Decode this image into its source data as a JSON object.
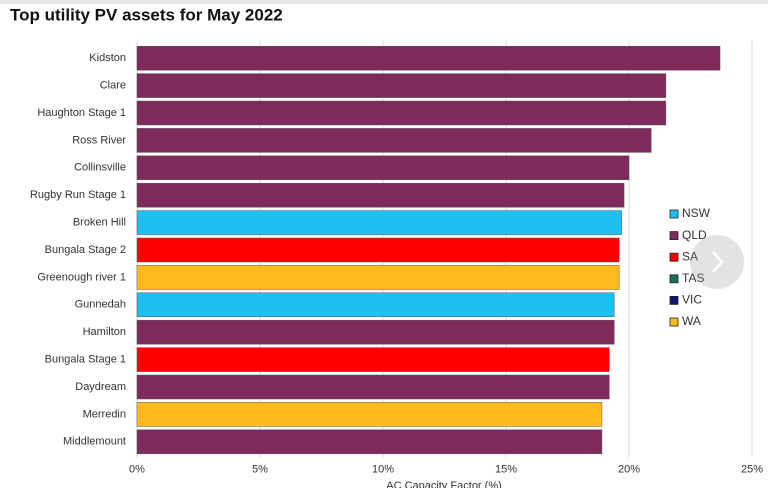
{
  "chart_data": {
    "type": "hbar",
    "title": "Top utility PV assets for May 2022",
    "x_label": "AC Capacity Factor (%)",
    "categories": [
      "Kidston",
      "Clare",
      "Haughton Stage 1",
      "Ross River",
      "Collinsville",
      "Rugby Run Stage 1",
      "Broken Hill",
      "Bungala Stage 2",
      "Greenough river 1",
      "Gunnedah",
      "Hamilton",
      "Bungala Stage 1",
      "Daydream",
      "Merredin",
      "Middlemount"
    ],
    "series": [
      {
        "name": "NSW",
        "color": "#1ec0f0",
        "values": [
          null,
          null,
          null,
          null,
          null,
          null,
          19.7,
          null,
          null,
          19.4,
          null,
          null,
          null,
          null,
          null
        ]
      },
      {
        "name": "QLD",
        "color": "#7e2b5c",
        "values": [
          23.7,
          21.5,
          21.5,
          20.9,
          20.0,
          19.8,
          null,
          null,
          null,
          null,
          19.4,
          null,
          19.2,
          null,
          18.9
        ]
      },
      {
        "name": "SA",
        "color": "#ff0000",
        "values": [
          null,
          null,
          null,
          null,
          null,
          null,
          null,
          19.6,
          null,
          null,
          null,
          19.2,
          null,
          null,
          null
        ]
      },
      {
        "name": "TAS",
        "color": "#1b6e5a",
        "values": [
          null,
          null,
          null,
          null,
          null,
          null,
          null,
          null,
          null,
          null,
          null,
          null,
          null,
          null,
          null
        ]
      },
      {
        "name": "VIC",
        "color": "#0b1670",
        "values": [
          null,
          null,
          null,
          null,
          null,
          null,
          null,
          null,
          null,
          null,
          null,
          null,
          null,
          null,
          null
        ]
      },
      {
        "name": "WA",
        "color": "#ffbb1c",
        "values": [
          null,
          null,
          null,
          null,
          null,
          null,
          null,
          null,
          19.6,
          null,
          null,
          null,
          null,
          18.9,
          null
        ]
      }
    ],
    "xlim": [
      0,
      25
    ],
    "xticks": [
      {
        "value": 0,
        "label": "0%"
      },
      {
        "value": 5,
        "label": "5%"
      },
      {
        "value": 10,
        "label": "10%"
      },
      {
        "value": 15,
        "label": "15%"
      },
      {
        "value": 20,
        "label": "20%"
      },
      {
        "value": 25,
        "label": "25%"
      }
    ],
    "grid": true
  }
}
